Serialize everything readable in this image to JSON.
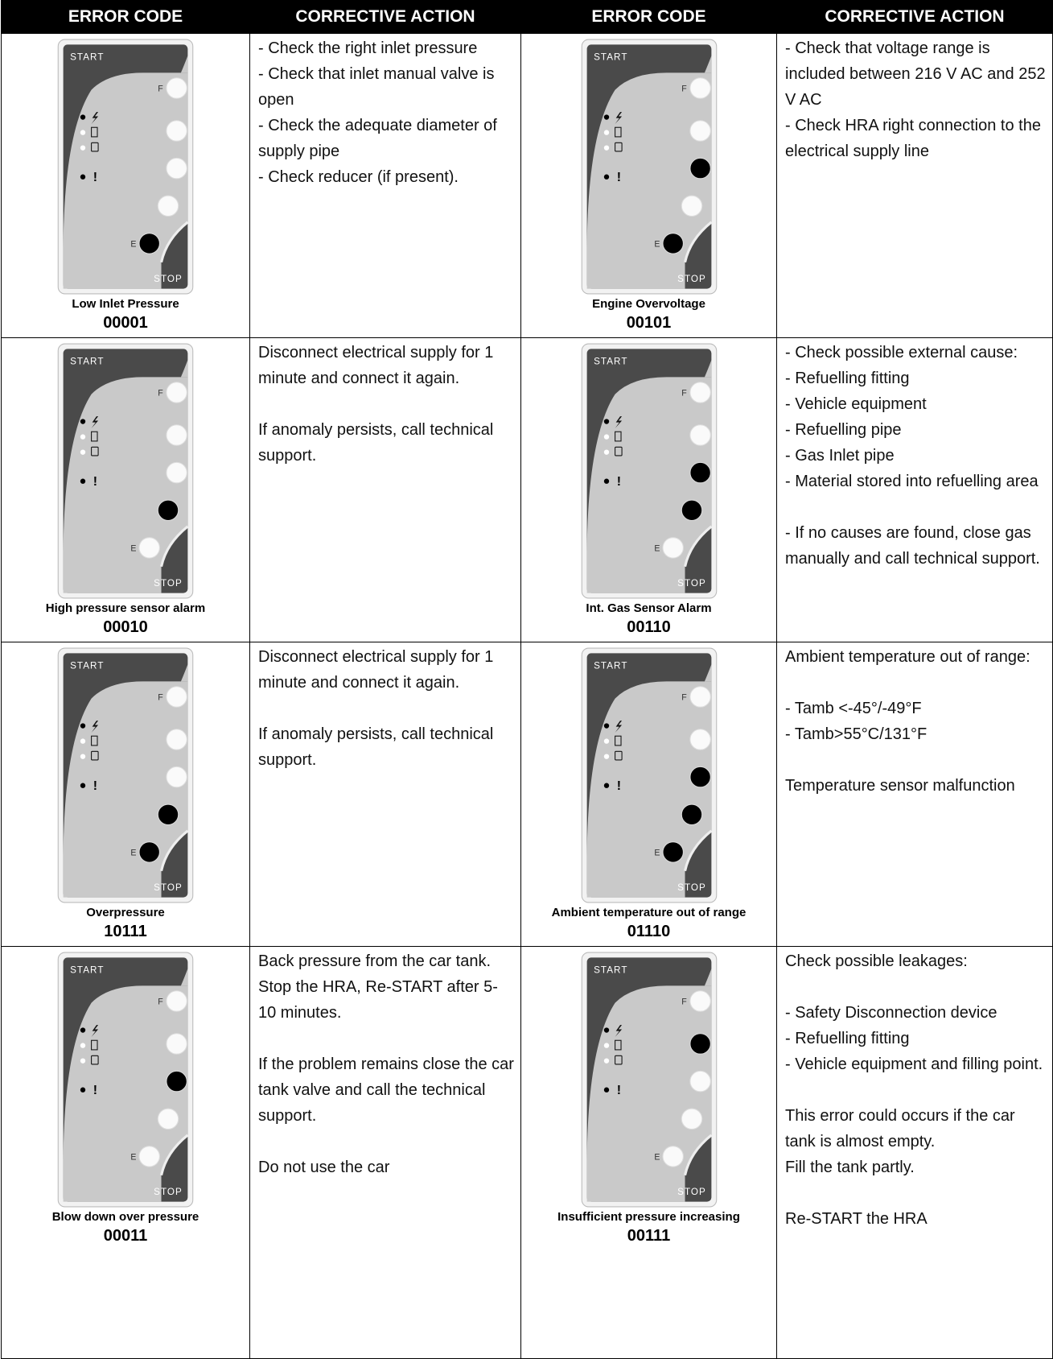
{
  "header": [
    "ERROR CODE",
    "CORRECTIVE ACTION",
    "ERROR CODE",
    "CORRECTIVE ACTION"
  ],
  "panel": {
    "start": "START",
    "stop": "STOP",
    "f": "F",
    "e": "E",
    "alarm": "!"
  },
  "rows": [
    [
      {
        "name": "Low Inlet Pressure",
        "code": "00001",
        "action": [
          [
            "- Check the right inlet pressure",
            "- Check that inlet manual valve is open",
            "- Check the adequate diameter of supply pipe",
            "- Check reducer (if present)."
          ]
        ]
      },
      {
        "name": "Engine Overvoltage",
        "code": "00101",
        "action": [
          [
            "- Check that voltage range is included between 216 V AC and 252 V AC",
            "- Check HRA right connection to the electrical supply line"
          ]
        ]
      }
    ],
    [
      {
        "name": "High pressure sensor alarm",
        "code": "00010",
        "action": [
          [
            "Disconnect electrical supply for 1 minute and connect it again."
          ],
          [
            "If anomaly persists, call technical support."
          ]
        ]
      },
      {
        "name": "Int. Gas Sensor Alarm",
        "code": "00110",
        "action": [
          [
            "- Check possible external cause:",
            "- Refuelling fitting",
            "- Vehicle equipment",
            "- Refuelling pipe",
            "- Gas Inlet pipe",
            "- Material stored into refuelling area"
          ],
          [
            "- If no causes are found, close gas manually and call technical support."
          ]
        ]
      }
    ],
    [
      {
        "name": "Overpressure",
        "code": "10111",
        "action": [
          [
            "Disconnect electrical supply for 1 minute and connect it again."
          ],
          [
            "If anomaly persists, call technical support."
          ]
        ]
      },
      {
        "name": "Ambient temperature out of range",
        "code": "01110",
        "action": [
          [
            "Ambient temperature out of range:"
          ],
          [
            "- Tamb <-45°/-49°F",
            "- Tamb>55°C/131°F"
          ],
          [
            "Temperature sensor malfunction"
          ]
        ]
      }
    ],
    [
      {
        "name": "Blow down over pressure",
        "code": "00011",
        "action": [
          [
            "Back pressure from the car tank.",
            "Stop the HRA, Re-START after 5-10 minutes."
          ],
          [
            "If the problem remains close the car tank valve and call the technical support."
          ],
          [
            "Do not use the car"
          ]
        ]
      },
      {
        "name": "Insufficient pressure increasing",
        "code": "00111",
        "action": [
          [
            "Check possible leakages:"
          ],
          [
            "- Safety Disconnection device",
            "- Refuelling fitting",
            "- Vehicle equipment and filling point."
          ],
          [
            "This error could occurs if the car tank is almost empty.",
            "Fill the tank partly."
          ],
          [
            "Re-START the HRA"
          ]
        ]
      }
    ]
  ]
}
